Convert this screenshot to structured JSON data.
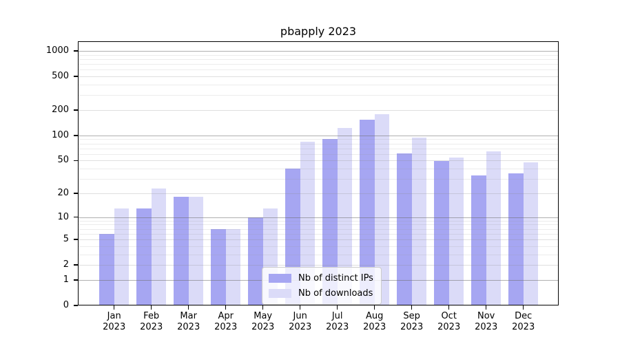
{
  "chart_data": {
    "type": "bar",
    "title": "pbapply 2023",
    "categories": [
      "Jan",
      "Feb",
      "Mar",
      "Apr",
      "May",
      "Jun",
      "Jul",
      "Aug",
      "Sep",
      "Oct",
      "Nov",
      "Dec"
    ],
    "category_year_label": "2023",
    "series": [
      {
        "name": "Nb of distinct IPs",
        "color": "#a6a6f2",
        "values": [
          6,
          13,
          18,
          7,
          10,
          40,
          90,
          155,
          61,
          49,
          33,
          35
        ]
      },
      {
        "name": "Nb of downloads",
        "color": "#dbdbf8",
        "values": [
          13,
          23,
          18,
          7,
          13,
          84,
          123,
          179,
          95,
          54,
          64,
          48
        ]
      }
    ],
    "y_axis": {
      "scale": "log10(1+x)",
      "ticks": [
        0,
        1,
        2,
        5,
        10,
        20,
        50,
        100,
        200,
        500,
        1000
      ],
      "top_value": 1200
    },
    "gridlines": {
      "major": [
        1,
        10,
        100,
        1000
      ],
      "labeled_minor": [
        2,
        5,
        20,
        50,
        200,
        500
      ],
      "minor": [
        3,
        4,
        6,
        7,
        8,
        9,
        30,
        40,
        60,
        70,
        80,
        90,
        300,
        400,
        600,
        700,
        800,
        900
      ]
    },
    "legend": {
      "position": "inside-bottom-center"
    },
    "xlabel": "",
    "ylabel": "",
    "grid": "on"
  }
}
